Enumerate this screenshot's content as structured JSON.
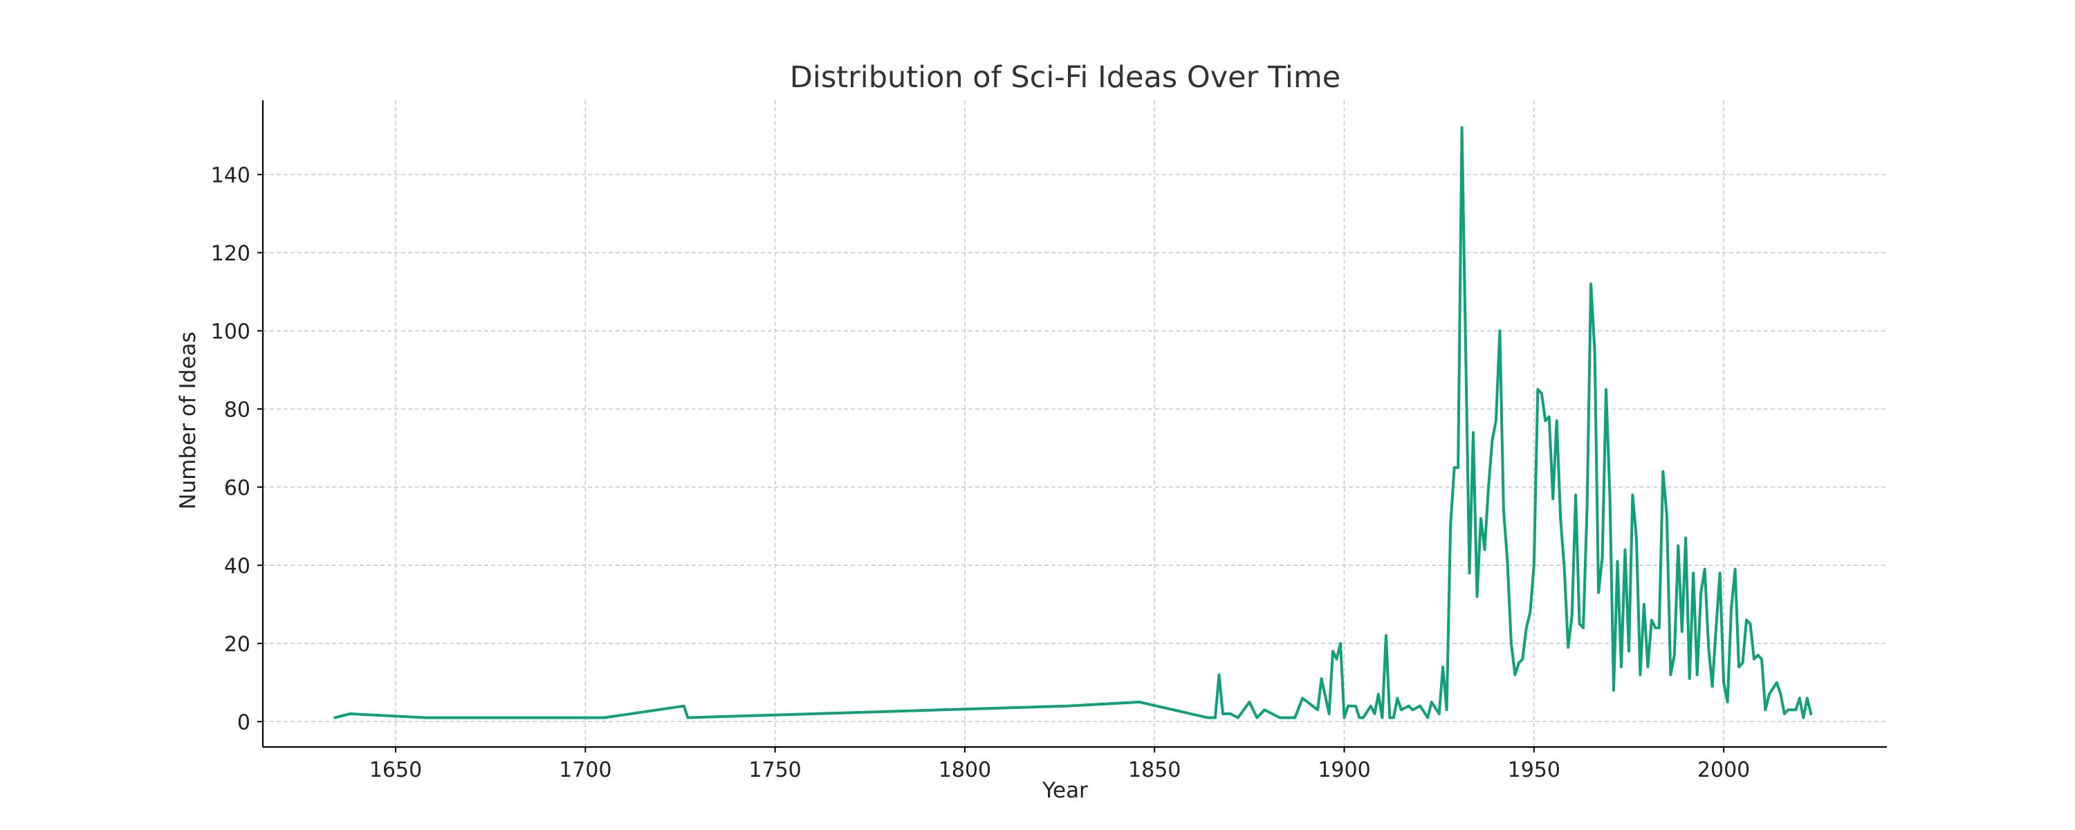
{
  "chart_data": {
    "type": "line",
    "title": "Distribution of Sci-Fi Ideas Over Time",
    "xlabel": "Year",
    "ylabel": "Number of Ideas",
    "xlim": [
      1615,
      2043
    ],
    "ylim": [
      -6.5,
      159
    ],
    "xticks": [
      1650,
      1700,
      1750,
      1800,
      1850,
      1900,
      1950,
      2000
    ],
    "yticks": [
      0,
      20,
      40,
      60,
      80,
      100,
      120,
      140
    ],
    "grid": true,
    "colors": {
      "line": "#12a07a",
      "grid": "#c8c8c8",
      "axis": "#000000"
    },
    "series": [
      {
        "name": "",
        "points": [
          [
            1634,
            1
          ],
          [
            1638,
            2
          ],
          [
            1658,
            1
          ],
          [
            1705,
            1
          ],
          [
            1726,
            4
          ],
          [
            1727,
            1
          ],
          [
            1827,
            4
          ],
          [
            1846,
            5
          ],
          [
            1864,
            1
          ],
          [
            1866,
            1
          ],
          [
            1867,
            12
          ],
          [
            1868,
            2
          ],
          [
            1870,
            2
          ],
          [
            1872,
            1
          ],
          [
            1875,
            5
          ],
          [
            1877,
            1
          ],
          [
            1879,
            3
          ],
          [
            1881,
            2
          ],
          [
            1883,
            1
          ],
          [
            1887,
            1
          ],
          [
            1889,
            6
          ],
          [
            1893,
            3
          ],
          [
            1894,
            11
          ],
          [
            1896,
            2
          ],
          [
            1897,
            18
          ],
          [
            1898,
            16
          ],
          [
            1899,
            20
          ],
          [
            1900,
            1
          ],
          [
            1901,
            4
          ],
          [
            1903,
            4
          ],
          [
            1904,
            1
          ],
          [
            1905,
            1
          ],
          [
            1907,
            4
          ],
          [
            1908,
            2
          ],
          [
            1909,
            7
          ],
          [
            1910,
            1
          ],
          [
            1911,
            22
          ],
          [
            1912,
            1
          ],
          [
            1913,
            1
          ],
          [
            1914,
            6
          ],
          [
            1915,
            3
          ],
          [
            1917,
            4
          ],
          [
            1918,
            3
          ],
          [
            1920,
            4
          ],
          [
            1922,
            1
          ],
          [
            1923,
            5
          ],
          [
            1925,
            2
          ],
          [
            1926,
            14
          ],
          [
            1927,
            3
          ],
          [
            1928,
            50
          ],
          [
            1929,
            65
          ],
          [
            1930,
            65
          ],
          [
            1931,
            152
          ],
          [
            1932,
            95
          ],
          [
            1933,
            38
          ],
          [
            1934,
            74
          ],
          [
            1935,
            32
          ],
          [
            1936,
            52
          ],
          [
            1937,
            44
          ],
          [
            1938,
            60
          ],
          [
            1939,
            72
          ],
          [
            1940,
            77
          ],
          [
            1941,
            100
          ],
          [
            1942,
            54
          ],
          [
            1943,
            41
          ],
          [
            1944,
            20
          ],
          [
            1945,
            12
          ],
          [
            1946,
            15
          ],
          [
            1947,
            16
          ],
          [
            1948,
            24
          ],
          [
            1949,
            28
          ],
          [
            1950,
            40
          ],
          [
            1951,
            85
          ],
          [
            1952,
            84
          ],
          [
            1953,
            77
          ],
          [
            1954,
            78
          ],
          [
            1955,
            57
          ],
          [
            1956,
            77
          ],
          [
            1957,
            52
          ],
          [
            1958,
            39
          ],
          [
            1959,
            19
          ],
          [
            1960,
            27
          ],
          [
            1961,
            58
          ],
          [
            1962,
            25
          ],
          [
            1963,
            24
          ],
          [
            1964,
            55
          ],
          [
            1965,
            112
          ],
          [
            1966,
            95
          ],
          [
            1967,
            33
          ],
          [
            1968,
            42
          ],
          [
            1969,
            85
          ],
          [
            1970,
            58
          ],
          [
            1971,
            8
          ],
          [
            1972,
            41
          ],
          [
            1973,
            14
          ],
          [
            1974,
            44
          ],
          [
            1975,
            18
          ],
          [
            1976,
            58
          ],
          [
            1977,
            47
          ],
          [
            1978,
            12
          ],
          [
            1979,
            30
          ],
          [
            1980,
            14
          ],
          [
            1981,
            26
          ],
          [
            1982,
            24
          ],
          [
            1983,
            24
          ],
          [
            1984,
            64
          ],
          [
            1985,
            53
          ],
          [
            1986,
            12
          ],
          [
            1987,
            17
          ],
          [
            1988,
            45
          ],
          [
            1989,
            23
          ],
          [
            1990,
            47
          ],
          [
            1991,
            11
          ],
          [
            1992,
            38
          ],
          [
            1993,
            12
          ],
          [
            1994,
            33
          ],
          [
            1995,
            39
          ],
          [
            1996,
            19
          ],
          [
            1997,
            9
          ],
          [
            1998,
            24
          ],
          [
            1999,
            38
          ],
          [
            2000,
            10
          ],
          [
            2001,
            5
          ],
          [
            2002,
            29
          ],
          [
            2003,
            39
          ],
          [
            2004,
            14
          ],
          [
            2005,
            15
          ],
          [
            2006,
            26
          ],
          [
            2007,
            25
          ],
          [
            2008,
            16
          ],
          [
            2009,
            17
          ],
          [
            2010,
            16
          ],
          [
            2011,
            3
          ],
          [
            2012,
            7
          ],
          [
            2014,
            10
          ],
          [
            2015,
            7
          ],
          [
            2016,
            2
          ],
          [
            2017,
            3
          ],
          [
            2019,
            3
          ],
          [
            2020,
            6
          ],
          [
            2021,
            1
          ],
          [
            2022,
            6
          ],
          [
            2023,
            2
          ]
        ]
      }
    ]
  }
}
